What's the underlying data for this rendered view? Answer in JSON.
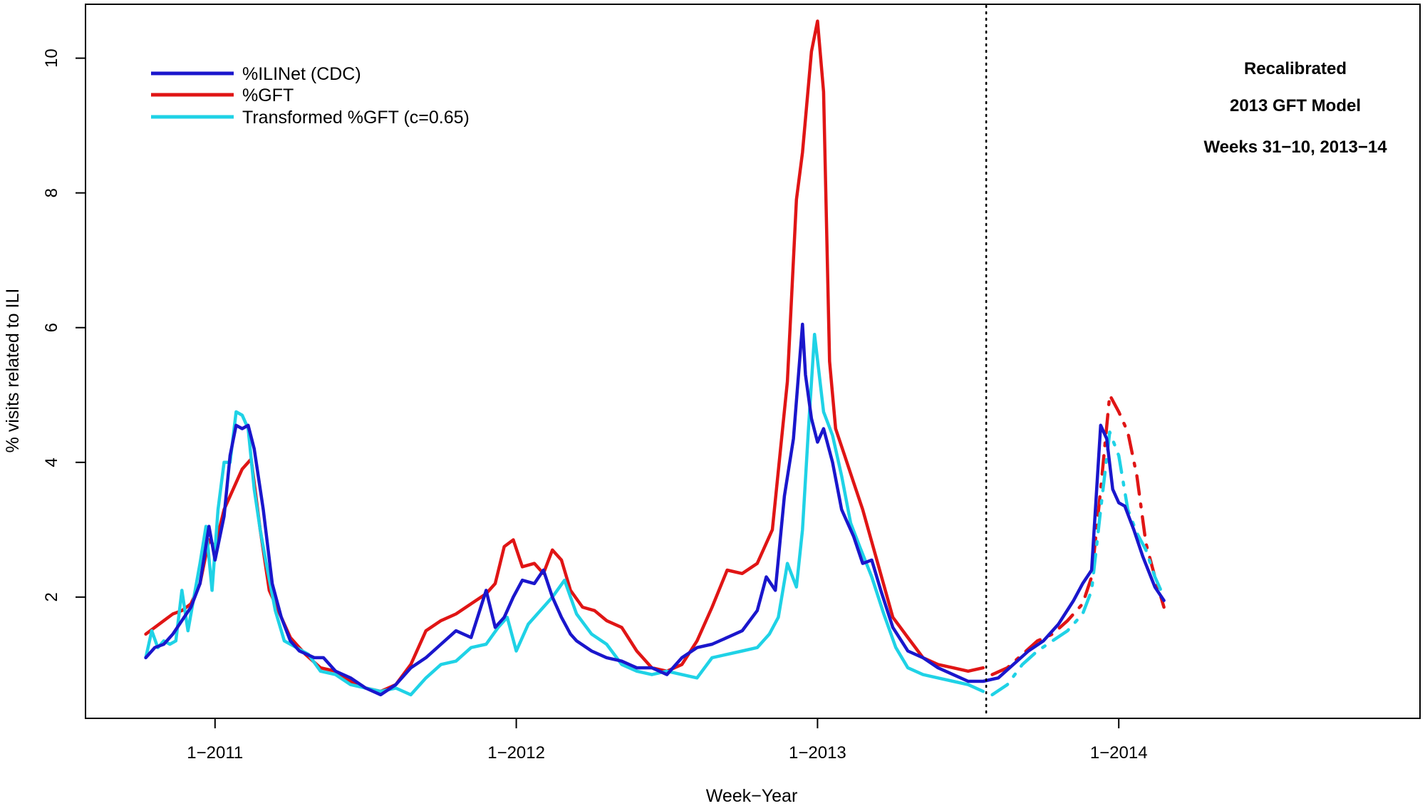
{
  "chart_data": {
    "type": "line",
    "title": "",
    "xlabel": "Week−Year",
    "ylabel": "% visits related to ILI",
    "x_ticks": [
      {
        "label": "1−2011",
        "value": 2011.0
      },
      {
        "label": "1−2012",
        "value": 2012.0
      },
      {
        "label": "1−2013",
        "value": 2013.0
      },
      {
        "label": "1−2014",
        "value": 2014.0
      }
    ],
    "y_ticks": [
      2,
      4,
      6,
      8,
      10
    ],
    "xlim": [
      2010.57,
      2015.0
    ],
    "ylim": [
      0.2,
      10.8
    ],
    "grid": false,
    "legend_position": "top-left",
    "annotation_lines": [
      "Recalibrated",
      "2013 GFT Model",
      "Weeks 31−10, 2013−14"
    ],
    "divider_x": 2013.56,
    "series": [
      {
        "name": "%ILINet (CDC)",
        "color": "#1a16cc",
        "x": [
          2010.77,
          2010.8,
          2010.83,
          2010.86,
          2010.89,
          2010.92,
          2010.95,
          2010.98,
          2011.0,
          2011.03,
          2011.05,
          2011.07,
          2011.09,
          2011.11,
          2011.13,
          2011.16,
          2011.19,
          2011.22,
          2011.25,
          2011.28,
          2011.33,
          2011.36,
          2011.4,
          2011.45,
          2011.5,
          2011.55,
          2011.6,
          2011.65,
          2011.7,
          2011.75,
          2011.8,
          2011.85,
          2011.9,
          2011.93,
          2011.96,
          2011.99,
          2012.02,
          2012.06,
          2012.09,
          2012.12,
          2012.15,
          2012.18,
          2012.2,
          2012.25,
          2012.3,
          2012.35,
          2012.4,
          2012.45,
          2012.5,
          2012.55,
          2012.6,
          2012.65,
          2012.7,
          2012.75,
          2012.8,
          2012.83,
          2012.86,
          2012.89,
          2012.92,
          2012.95,
          2012.96,
          2012.98,
          2013.0,
          2013.02,
          2013.05,
          2013.08,
          2013.12,
          2013.15,
          2013.18,
          2013.21,
          2013.25,
          2013.3,
          2013.35,
          2013.4,
          2013.45,
          2013.5,
          2013.55,
          2013.6,
          2013.65,
          2013.7,
          2013.75,
          2013.8,
          2013.85,
          2013.88,
          2013.91,
          2013.94,
          2013.96,
          2013.98,
          2014.0,
          2014.02,
          2014.05,
          2014.08,
          2014.12,
          2014.15
        ],
        "y": [
          1.1,
          1.25,
          1.3,
          1.45,
          1.65,
          1.85,
          2.2,
          3.05,
          2.55,
          3.2,
          4.1,
          4.55,
          4.5,
          4.55,
          4.2,
          3.3,
          2.2,
          1.7,
          1.35,
          1.2,
          1.1,
          1.1,
          0.9,
          0.8,
          0.65,
          0.55,
          0.7,
          0.95,
          1.1,
          1.3,
          1.5,
          1.4,
          2.1,
          1.55,
          1.7,
          2.0,
          2.25,
          2.2,
          2.4,
          2.0,
          1.7,
          1.45,
          1.35,
          1.2,
          1.1,
          1.05,
          0.95,
          0.95,
          0.85,
          1.1,
          1.25,
          1.3,
          1.4,
          1.5,
          1.8,
          2.3,
          2.1,
          3.5,
          4.35,
          6.05,
          5.3,
          4.65,
          4.3,
          4.5,
          4.0,
          3.3,
          2.9,
          2.5,
          2.55,
          2.1,
          1.55,
          1.2,
          1.1,
          0.95,
          0.85,
          0.75,
          0.75,
          0.8,
          1.0,
          1.2,
          1.35,
          1.6,
          1.95,
          2.2,
          2.4,
          4.55,
          4.35,
          3.6,
          3.4,
          3.35,
          3.0,
          2.6,
          2.15,
          1.95
        ]
      },
      {
        "name": "%GFT",
        "color": "#e01515",
        "x": [
          2010.77,
          2010.8,
          2010.83,
          2010.86,
          2010.89,
          2010.92,
          2010.95,
          2010.98,
          2011.0,
          2011.03,
          2011.06,
          2011.09,
          2011.12,
          2011.15,
          2011.18,
          2011.22,
          2011.25,
          2011.3,
          2011.35,
          2011.4,
          2011.45,
          2011.5,
          2011.55,
          2011.6,
          2011.65,
          2011.7,
          2011.75,
          2011.8,
          2011.85,
          2011.9,
          2011.93,
          2011.96,
          2011.99,
          2012.02,
          2012.06,
          2012.09,
          2012.12,
          2012.15,
          2012.18,
          2012.22,
          2012.26,
          2012.3,
          2012.35,
          2012.4,
          2012.45,
          2012.5,
          2012.55,
          2012.6,
          2012.65,
          2012.7,
          2012.75,
          2012.8,
          2012.85,
          2012.9,
          2012.93,
          2012.95,
          2012.98,
          2013.0,
          2013.02,
          2013.04,
          2013.06,
          2013.09,
          2013.12,
          2013.15,
          2013.2,
          2013.25,
          2013.3,
          2013.35,
          2013.4,
          2013.45,
          2013.5,
          2013.55
        ],
        "y": [
          1.45,
          1.55,
          1.65,
          1.75,
          1.8,
          1.9,
          2.2,
          2.85,
          2.75,
          3.3,
          3.6,
          3.9,
          4.05,
          3.0,
          2.1,
          1.7,
          1.4,
          1.15,
          0.95,
          0.9,
          0.75,
          0.65,
          0.6,
          0.7,
          1.0,
          1.5,
          1.65,
          1.75,
          1.9,
          2.05,
          2.2,
          2.75,
          2.85,
          2.45,
          2.5,
          2.35,
          2.7,
          2.55,
          2.1,
          1.85,
          1.8,
          1.65,
          1.55,
          1.2,
          0.95,
          0.9,
          1.0,
          1.35,
          1.85,
          2.4,
          2.35,
          2.5,
          3.0,
          5.2,
          7.9,
          8.6,
          10.1,
          10.55,
          9.5,
          5.5,
          4.5,
          4.1,
          3.7,
          3.3,
          2.5,
          1.7,
          1.4,
          1.1,
          1.0,
          0.95,
          0.9,
          0.95
        ]
      },
      {
        "name": "%GFT (recalibrated 2013 model)",
        "color": "#e01515",
        "dashed": true,
        "x": [
          2013.58,
          2013.63,
          2013.68,
          2013.73,
          2013.78,
          2013.83,
          2013.88,
          2013.91,
          2013.94,
          2013.97,
          2014.0,
          2014.03,
          2014.06,
          2014.09,
          2014.12,
          2014.15
        ],
        "y": [
          0.85,
          0.95,
          1.15,
          1.35,
          1.45,
          1.65,
          1.9,
          2.3,
          3.6,
          5.0,
          4.75,
          4.45,
          3.8,
          2.8,
          2.3,
          1.85
        ]
      },
      {
        "name": "Transformed %GFT (c=0.65)",
        "color": "#1fd2e6",
        "x": [
          2010.77,
          2010.79,
          2010.81,
          2010.83,
          2010.85,
          2010.87,
          2010.89,
          2010.91,
          2010.93,
          2010.95,
          2010.97,
          2010.99,
          2011.01,
          2011.03,
          2011.05,
          2011.07,
          2011.09,
          2011.11,
          2011.13,
          2011.15,
          2011.17,
          2011.2,
          2011.23,
          2011.27,
          2011.31,
          2011.35,
          2011.4,
          2011.45,
          2011.5,
          2011.55,
          2011.6,
          2011.65,
          2011.7,
          2011.75,
          2011.8,
          2011.85,
          2011.9,
          2011.94,
          2011.97,
          2012.0,
          2012.04,
          2012.08,
          2012.12,
          2012.16,
          2012.2,
          2012.25,
          2012.3,
          2012.35,
          2012.4,
          2012.45,
          2012.5,
          2012.55,
          2012.6,
          2012.65,
          2012.7,
          2012.75,
          2012.8,
          2012.84,
          2012.87,
          2012.9,
          2012.93,
          2012.95,
          2012.97,
          2012.99,
          2013.02,
          2013.05,
          2013.08,
          2013.11,
          2013.14,
          2013.18,
          2013.22,
          2013.26,
          2013.3,
          2013.35,
          2013.4,
          2013.45,
          2013.5,
          2013.55
        ],
        "y": [
          1.1,
          1.5,
          1.25,
          1.35,
          1.3,
          1.35,
          2.1,
          1.5,
          2.0,
          2.5,
          3.05,
          2.1,
          3.3,
          4.0,
          4.0,
          4.75,
          4.7,
          4.5,
          3.6,
          3.0,
          2.5,
          1.8,
          1.35,
          1.25,
          1.15,
          0.9,
          0.85,
          0.7,
          0.65,
          0.6,
          0.65,
          0.55,
          0.8,
          1.0,
          1.05,
          1.25,
          1.3,
          1.55,
          1.7,
          1.2,
          1.6,
          1.8,
          2.0,
          2.25,
          1.75,
          1.45,
          1.3,
          1.0,
          0.9,
          0.85,
          0.9,
          0.85,
          0.8,
          1.1,
          1.15,
          1.2,
          1.25,
          1.45,
          1.7,
          2.5,
          2.15,
          3.0,
          4.5,
          5.9,
          4.75,
          4.4,
          3.8,
          3.1,
          2.75,
          2.3,
          1.75,
          1.25,
          0.95,
          0.85,
          0.8,
          0.75,
          0.7,
          0.6
        ]
      },
      {
        "name": "Transformed %GFT (recalibrated 2013 model)",
        "color": "#1fd2e6",
        "dashed": true,
        "x": [
          2013.58,
          2013.63,
          2013.68,
          2013.73,
          2013.78,
          2013.83,
          2013.88,
          2013.91,
          2013.94,
          2013.97,
          2014.0,
          2014.03,
          2014.06,
          2014.09,
          2014.12,
          2014.15
        ],
        "y": [
          0.55,
          0.7,
          1.0,
          1.2,
          1.35,
          1.5,
          1.75,
          2.1,
          3.3,
          4.45,
          4.1,
          3.3,
          2.95,
          2.7,
          2.3,
          2.0
        ]
      }
    ]
  }
}
